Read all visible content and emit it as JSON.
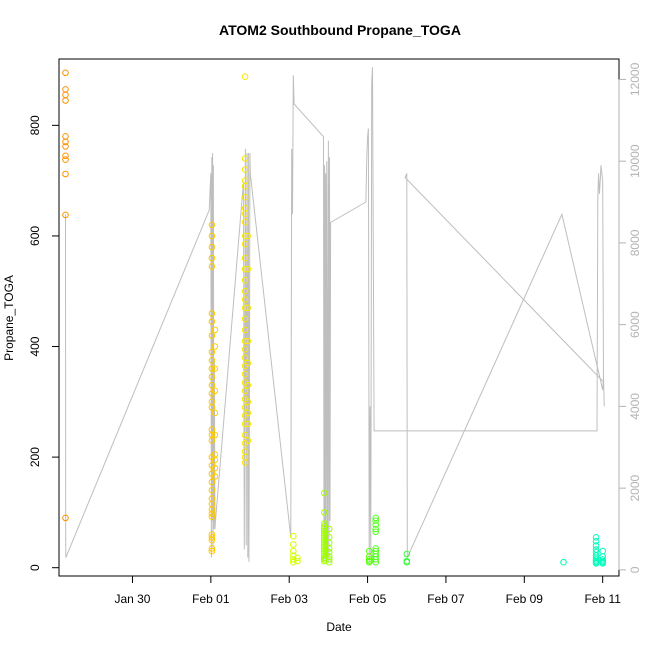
{
  "chart_data": {
    "type": "scatter",
    "title": "ATOM2 Southbound Propane_TOGA",
    "xlabel": "Date",
    "ylabel": "Propane_TOGA",
    "x_axis_kind": "date",
    "xlim": [
      "2017-01-28T03:00",
      "2017-02-11T10:00"
    ],
    "ylim": [
      -15,
      920
    ],
    "y2lim": [
      -150,
      12500
    ],
    "x_ticks": [
      {
        "value": "2017-01-30",
        "label": "Jan 30"
      },
      {
        "value": "2017-02-01",
        "label": "Feb 01"
      },
      {
        "value": "2017-02-03",
        "label": "Feb 03"
      },
      {
        "value": "2017-02-05",
        "label": "Feb 05"
      },
      {
        "value": "2017-02-07",
        "label": "Feb 07"
      },
      {
        "value": "2017-02-09",
        "label": "Feb 09"
      },
      {
        "value": "2017-02-11",
        "label": "Feb 11"
      }
    ],
    "y_ticks": [
      0,
      200,
      400,
      600,
      800
    ],
    "y2_ticks": [
      0,
      2000,
      4000,
      6000,
      8000,
      10000,
      12000
    ],
    "grid": false,
    "legend": "none",
    "colors": {
      "axis": "#000000",
      "secondary_line": "#bebebe",
      "secondary_axis": "#b3b3b3",
      "point_ramp": [
        "#ff8c00",
        "#ffb000",
        "#ffd700",
        "#f5ff00",
        "#c8ff00",
        "#7cff00",
        "#33ff33",
        "#00ff66",
        "#00ffa0",
        "#00ffd0"
      ]
    },
    "scatter_series": [
      {
        "x": "2017-01-28T07:00",
        "y": [
          895,
          865,
          855,
          845,
          780,
          770,
          762,
          745,
          738,
          712,
          638,
          90
        ],
        "c": 0.02
      },
      {
        "x": "2017-02-01T00:40",
        "y": [
          620,
          600,
          580,
          560,
          545,
          460,
          445,
          420,
          390,
          375,
          360,
          345,
          330,
          315,
          300,
          290,
          250,
          240,
          230,
          200,
          185,
          170,
          155,
          140,
          125,
          115,
          105,
          98,
          92,
          60,
          55,
          50,
          35,
          30
        ],
        "c": 0.18
      },
      {
        "x": "2017-02-01T02:30",
        "y": [
          430,
          400,
          360,
          320,
          280,
          240,
          205,
          195,
          180,
          165
        ],
        "c": 0.19
      },
      {
        "x": "2017-02-01T21:00",
        "y": [
          888,
          740,
          720,
          700,
          690,
          670,
          650,
          640,
          625,
          600,
          585,
          560,
          540,
          520,
          500,
          485,
          470,
          450,
          430,
          410,
          395,
          380,
          365,
          350,
          335,
          320,
          305,
          290,
          275,
          260,
          240,
          225,
          210,
          200,
          190
        ],
        "c": 0.26
      },
      {
        "x": "2017-02-01T22:40",
        "y": [
          600,
          540,
          470,
          410,
          370,
          330,
          300,
          280,
          260,
          230
        ],
        "c": 0.27
      },
      {
        "x": "2017-02-03T02:30",
        "y": [
          57,
          42,
          30,
          22,
          15,
          10
        ],
        "c": 0.42
      },
      {
        "x": "2017-02-03T05:00",
        "y": [
          18,
          12
        ],
        "c": 0.43
      },
      {
        "x": "2017-02-03T21:30",
        "y": [
          135,
          100,
          80,
          75,
          70,
          66,
          62,
          58,
          54,
          50,
          46,
          42,
          38,
          34,
          30,
          26,
          22,
          18,
          15,
          12
        ],
        "c": 0.5
      },
      {
        "x": "2017-02-04T00:30",
        "y": [
          70,
          55,
          45,
          35,
          28,
          20,
          15,
          10
        ],
        "c": 0.51
      },
      {
        "x": "2017-02-05T01:00",
        "y": [
          30,
          20,
          15,
          12,
          10
        ],
        "c": 0.6
      },
      {
        "x": "2017-02-05T05:00",
        "y": [
          90,
          85,
          78,
          70,
          65,
          35,
          30,
          25,
          20,
          15,
          10
        ],
        "c": 0.62
      },
      {
        "x": "2017-02-06T00:00",
        "y": [
          25,
          12,
          10
        ],
        "c": 0.67
      },
      {
        "x": "2017-02-10T00:00",
        "y": [
          10
        ],
        "c": 0.9
      },
      {
        "x": "2017-02-10T20:00",
        "y": [
          55,
          48,
          40,
          33,
          28,
          22,
          18,
          15,
          12,
          10,
          8
        ],
        "c": 0.95
      },
      {
        "x": "2017-02-11T00:00",
        "y": [
          30,
          20,
          15,
          12,
          10,
          8
        ],
        "c": 0.96
      }
    ],
    "secondary_line": [
      [
        "2017-01-28T07:00",
        8700
      ],
      [
        "2017-01-28T07:05",
        1000
      ],
      [
        "2017-01-28T07:10",
        300
      ],
      [
        "2017-01-31T23:00",
        8800
      ],
      [
        "2017-02-01T00:00",
        9700
      ],
      [
        "2017-02-01T00:20",
        300
      ],
      [
        "2017-02-01T00:35",
        10100
      ],
      [
        "2017-02-01T00:50",
        1200
      ],
      [
        "2017-02-01T01:05",
        10200
      ],
      [
        "2017-02-01T01:20",
        500
      ],
      [
        "2017-02-01T01:35",
        9900
      ],
      [
        "2017-02-01T01:50",
        1000
      ],
      [
        "2017-02-01T02:10",
        5100
      ],
      [
        "2017-02-01T02:30",
        1000
      ],
      [
        "2017-02-01T02:50",
        1200
      ],
      [
        "2017-02-01T20:00",
        9500
      ],
      [
        "2017-02-01T20:30",
        500
      ],
      [
        "2017-02-01T21:10",
        10300
      ],
      [
        "2017-02-01T21:40",
        600
      ],
      [
        "2017-02-01T22:10",
        10200
      ],
      [
        "2017-02-01T22:40",
        300
      ],
      [
        "2017-02-01T23:00",
        10200
      ],
      [
        "2017-02-01T23:20",
        200
      ],
      [
        "2017-02-01T23:40",
        4200
      ],
      [
        "2017-02-01T23:55",
        10200
      ],
      [
        "2017-02-02T00:10",
        9700
      ],
      [
        "2017-02-03T01:00",
        800
      ],
      [
        "2017-02-03T01:30",
        10300
      ],
      [
        "2017-02-03T02:00",
        8700
      ],
      [
        "2017-02-03T02:30",
        12100
      ],
      [
        "2017-02-03T03:00",
        11400
      ],
      [
        "2017-02-03T21:00",
        10600
      ],
      [
        "2017-02-03T21:20",
        200
      ],
      [
        "2017-02-03T21:40",
        9900
      ],
      [
        "2017-02-03T22:00",
        300
      ],
      [
        "2017-02-03T22:20",
        9700
      ],
      [
        "2017-02-03T22:40",
        200
      ],
      [
        "2017-02-03T23:00",
        10000
      ],
      [
        "2017-02-03T23:30",
        300
      ],
      [
        "2017-02-04T00:00",
        10500
      ],
      [
        "2017-02-04T00:20",
        200
      ],
      [
        "2017-02-04T00:40",
        10100
      ],
      [
        "2017-02-04T01:00",
        1200
      ],
      [
        "2017-02-04T01:20",
        8500
      ],
      [
        "2017-02-04T23:00",
        9000
      ],
      [
        "2017-02-04T23:30",
        10100
      ],
      [
        "2017-02-05T00:00",
        10600
      ],
      [
        "2017-02-05T00:30",
        10800
      ],
      [
        "2017-02-05T01:00",
        200
      ],
      [
        "2017-02-05T01:30",
        4000
      ],
      [
        "2017-02-05T02:00",
        300
      ],
      [
        "2017-02-05T02:30",
        11900
      ],
      [
        "2017-02-05T03:00",
        12300
      ],
      [
        "2017-02-05T04:00",
        3400
      ],
      [
        "2017-02-10T20:30",
        3400
      ],
      [
        "2017-02-10T21:00",
        9100
      ],
      [
        "2017-02-10T21:30",
        9700
      ],
      [
        "2017-02-10T22:00",
        9200
      ],
      [
        "2017-02-10T22:30",
        9500
      ],
      [
        "2017-02-10T23:00",
        9900
      ],
      [
        "2017-02-10T23:30",
        9700
      ],
      [
        "2017-02-11T00:00",
        9500
      ],
      [
        "2017-02-11T00:30",
        4600
      ],
      [
        "2017-02-05T23:00",
        9600
      ],
      [
        "2017-02-06T00:00",
        9700
      ],
      [
        "2017-02-06T00:20",
        300
      ],
      [
        "2017-02-09T23:00",
        8700
      ],
      [
        "2017-02-11T00:00",
        4400
      ],
      [
        "2017-02-11T00:30",
        4700
      ],
      [
        "2017-02-11T01:00",
        4000
      ]
    ]
  }
}
